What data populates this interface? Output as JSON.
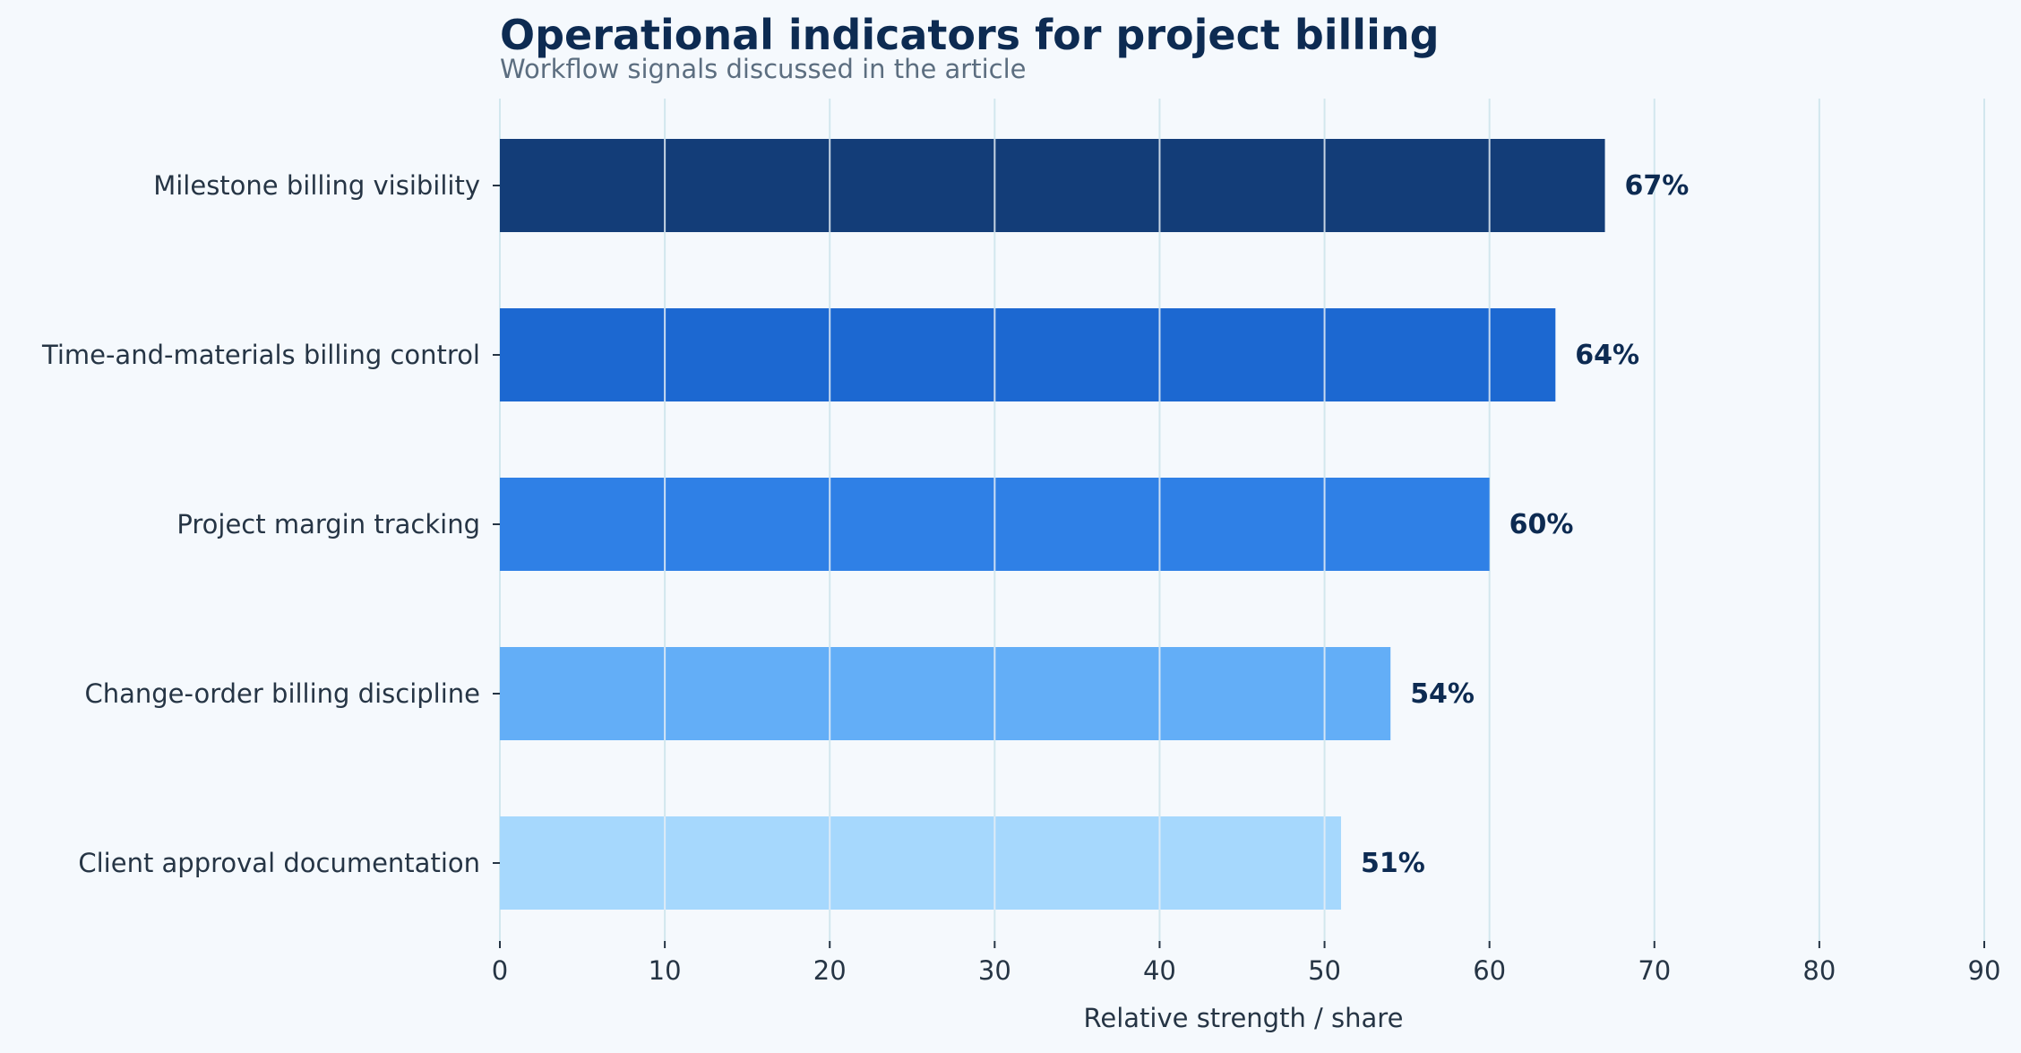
{
  "chart_data": {
    "type": "bar",
    "orientation": "horizontal",
    "title": "Operational indicators for project billing",
    "subtitle": "Workflow signals discussed in the article",
    "xlabel": "Relative strength / share",
    "ylabel": "",
    "xlim": [
      0,
      90
    ],
    "xticks": [
      0,
      10,
      20,
      30,
      40,
      50,
      60,
      70,
      80,
      90
    ],
    "grid": true,
    "categories": [
      "Milestone billing visibility",
      "Time-and-materials billing control",
      "Project margin tracking",
      "Change-order billing discipline",
      "Client approval documentation"
    ],
    "values": [
      67,
      64,
      60,
      54,
      51
    ],
    "data_labels": [
      "67%",
      "64%",
      "60%",
      "54%",
      "51%"
    ],
    "colors": [
      "#133d78",
      "#1c68d1",
      "#2f80e6",
      "#63aef7",
      "#a6d8fd"
    ],
    "grid_color": "#d2e7ee",
    "text_color": "#263545",
    "label_color": "#0d2b52"
  }
}
